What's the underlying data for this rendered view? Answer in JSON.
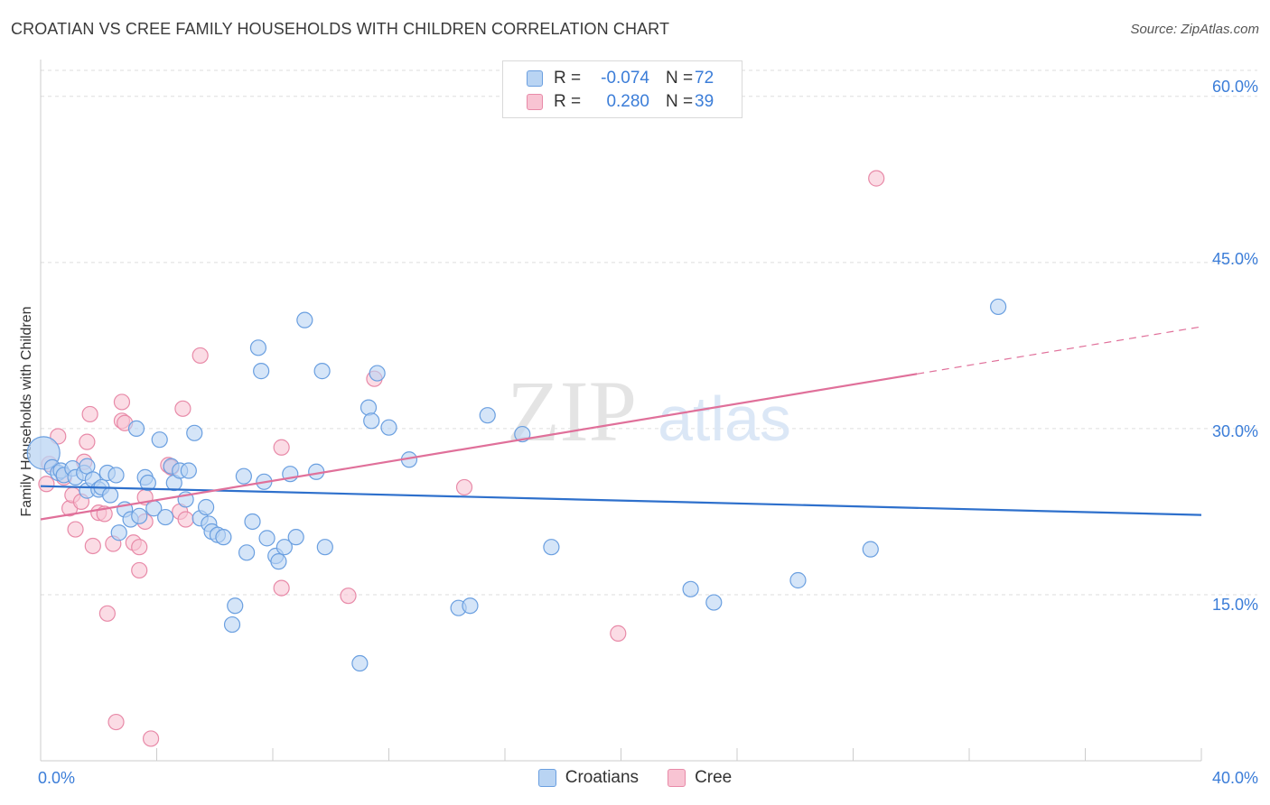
{
  "title": "CROATIAN VS CREE FAMILY HOUSEHOLDS WITH CHILDREN CORRELATION CHART",
  "source": "Source: ZipAtlas.com",
  "watermark": {
    "zip": "ZIP",
    "atlas": "atlas"
  },
  "legend_top": {
    "rows": [
      {
        "r_label": "R =",
        "r_value": "-0.074",
        "n_label": "N =",
        "n_value": "72"
      },
      {
        "r_label": "R =",
        "r_value": "0.280",
        "n_label": "N =",
        "n_value": "39"
      }
    ]
  },
  "legend_bottom": {
    "items": [
      {
        "label": "Croatians"
      },
      {
        "label": "Cree"
      }
    ]
  },
  "colors": {
    "croatians_fill": "#b9d4f3",
    "croatians_stroke": "#6a9fe0",
    "croatians_line": "#2e70cc",
    "cree_fill": "#f8c4d3",
    "cree_stroke": "#e88aa8",
    "cree_line": "#e0709a",
    "axis_label": "#3b7dd8",
    "grid": "#dddddd"
  },
  "chart_data": {
    "type": "scatter",
    "title": "CROATIAN VS CREE FAMILY HOUSEHOLDS WITH CHILDREN CORRELATION CHART",
    "xlabel": "",
    "ylabel": "Family Households with Children",
    "xlim": [
      0,
      40
    ],
    "ylim": [
      0,
      63
    ],
    "x_tick_labels": [
      "0.0%",
      "40.0%"
    ],
    "y_ticks": [
      15,
      30,
      45,
      60
    ],
    "y_tick_labels": [
      "15.0%",
      "30.0%",
      "45.0%",
      "60.0%"
    ],
    "grid": true,
    "legend_placement": "top-center and bottom",
    "series": [
      {
        "name": "Croatians",
        "r": -0.074,
        "n": 72,
        "trend": {
          "x": [
            0,
            40
          ],
          "y": [
            24.8,
            22.2
          ],
          "dashed_from": null
        },
        "points": [
          [
            0.1,
            27.8
          ],
          [
            0.4,
            26.5
          ],
          [
            0.6,
            26.0
          ],
          [
            0.7,
            26.2
          ],
          [
            0.8,
            25.8
          ],
          [
            1.1,
            26.4
          ],
          [
            1.2,
            25.6
          ],
          [
            1.5,
            26.0
          ],
          [
            1.6,
            24.4
          ],
          [
            1.6,
            26.6
          ],
          [
            1.8,
            25.4
          ],
          [
            2.0,
            24.5
          ],
          [
            2.1,
            24.7
          ],
          [
            2.3,
            26.0
          ],
          [
            2.4,
            24.0
          ],
          [
            2.6,
            25.8
          ],
          [
            2.7,
            20.6
          ],
          [
            2.9,
            22.7
          ],
          [
            3.1,
            21.8
          ],
          [
            3.3,
            30.0
          ],
          [
            3.4,
            22.1
          ],
          [
            3.6,
            25.6
          ],
          [
            3.7,
            25.1
          ],
          [
            3.9,
            22.8
          ],
          [
            4.1,
            29.0
          ],
          [
            4.3,
            22.0
          ],
          [
            4.5,
            26.6
          ],
          [
            4.6,
            25.1
          ],
          [
            4.8,
            26.2
          ],
          [
            5.0,
            23.6
          ],
          [
            5.1,
            26.2
          ],
          [
            5.3,
            29.6
          ],
          [
            5.5,
            21.9
          ],
          [
            5.7,
            22.9
          ],
          [
            5.8,
            21.4
          ],
          [
            5.9,
            20.7
          ],
          [
            6.1,
            20.4
          ],
          [
            6.3,
            20.2
          ],
          [
            6.6,
            12.3
          ],
          [
            6.7,
            14.0
          ],
          [
            7.0,
            25.7
          ],
          [
            7.1,
            18.8
          ],
          [
            7.3,
            21.6
          ],
          [
            7.5,
            37.3
          ],
          [
            7.6,
            35.2
          ],
          [
            7.7,
            25.2
          ],
          [
            7.8,
            20.1
          ],
          [
            8.1,
            18.5
          ],
          [
            8.2,
            18.0
          ],
          [
            8.4,
            19.3
          ],
          [
            8.6,
            25.9
          ],
          [
            8.8,
            20.2
          ],
          [
            9.1,
            39.8
          ],
          [
            9.5,
            26.1
          ],
          [
            9.7,
            35.2
          ],
          [
            9.8,
            19.3
          ],
          [
            11.0,
            8.8
          ],
          [
            11.3,
            31.9
          ],
          [
            11.4,
            30.7
          ],
          [
            11.6,
            35.0
          ],
          [
            12.0,
            30.1
          ],
          [
            12.7,
            27.2
          ],
          [
            14.4,
            13.8
          ],
          [
            14.8,
            14.0
          ],
          [
            15.4,
            31.2
          ],
          [
            16.6,
            29.5
          ],
          [
            17.6,
            19.3
          ],
          [
            22.4,
            15.5
          ],
          [
            23.2,
            14.3
          ],
          [
            26.1,
            16.3
          ],
          [
            28.6,
            19.1
          ],
          [
            33.0,
            41.0
          ]
        ]
      },
      {
        "name": "Cree",
        "r": 0.28,
        "n": 39,
        "trend": {
          "x": [
            0,
            40
          ],
          "y": [
            21.8,
            39.2
          ],
          "dashed_from": 30.2
        },
        "points": [
          [
            0.2,
            25.0
          ],
          [
            0.6,
            29.3
          ],
          [
            0.8,
            25.6
          ],
          [
            1.0,
            22.8
          ],
          [
            1.1,
            24.0
          ],
          [
            1.2,
            20.9
          ],
          [
            1.4,
            23.4
          ],
          [
            1.5,
            27.0
          ],
          [
            1.6,
            28.8
          ],
          [
            1.7,
            31.3
          ],
          [
            1.8,
            19.4
          ],
          [
            2.0,
            22.4
          ],
          [
            2.2,
            22.3
          ],
          [
            2.3,
            13.3
          ],
          [
            2.5,
            19.6
          ],
          [
            2.6,
            3.5
          ],
          [
            2.8,
            30.7
          ],
          [
            2.8,
            32.4
          ],
          [
            2.9,
            30.5
          ],
          [
            3.2,
            19.7
          ],
          [
            3.4,
            19.3
          ],
          [
            3.4,
            17.2
          ],
          [
            3.6,
            21.6
          ],
          [
            3.6,
            23.8
          ],
          [
            3.8,
            2.0
          ],
          [
            4.4,
            26.7
          ],
          [
            4.8,
            22.5
          ],
          [
            4.9,
            31.8
          ],
          [
            5.0,
            21.8
          ],
          [
            5.5,
            36.6
          ],
          [
            8.3,
            28.3
          ],
          [
            8.3,
            15.6
          ],
          [
            10.6,
            14.9
          ],
          [
            11.5,
            34.5
          ],
          [
            14.6,
            24.7
          ],
          [
            19.9,
            11.5
          ],
          [
            28.8,
            52.6
          ],
          [
            0.3,
            26.8
          ],
          [
            4.5,
            26.5
          ]
        ]
      }
    ]
  }
}
